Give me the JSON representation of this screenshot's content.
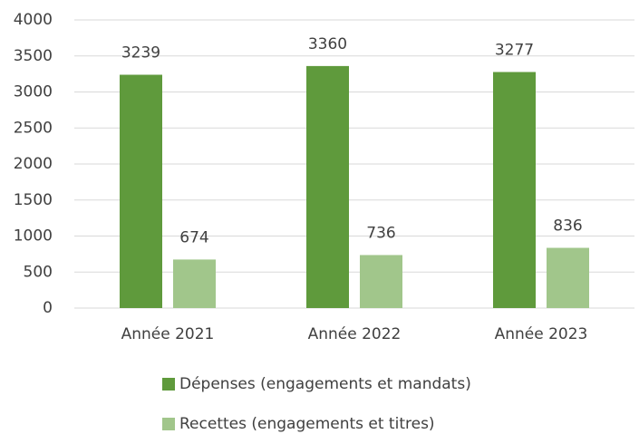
{
  "chart_data": {
    "type": "bar",
    "categories": [
      "Année 2021",
      "Année 2022",
      "Année 2023"
    ],
    "series": [
      {
        "name": "Dépenses (engagements et mandats)",
        "color": "#5f9a3c",
        "values": [
          3239,
          3360,
          3277
        ]
      },
      {
        "name": "Recettes (engagements et titres)",
        "color": "#a1c68b",
        "values": [
          674,
          736,
          836
        ]
      }
    ],
    "ylim": [
      0,
      4000
    ],
    "yticks": [
      0,
      500,
      1000,
      1500,
      2000,
      2500,
      3000,
      3500,
      4000
    ],
    "grid": true,
    "legend": "bottom"
  }
}
